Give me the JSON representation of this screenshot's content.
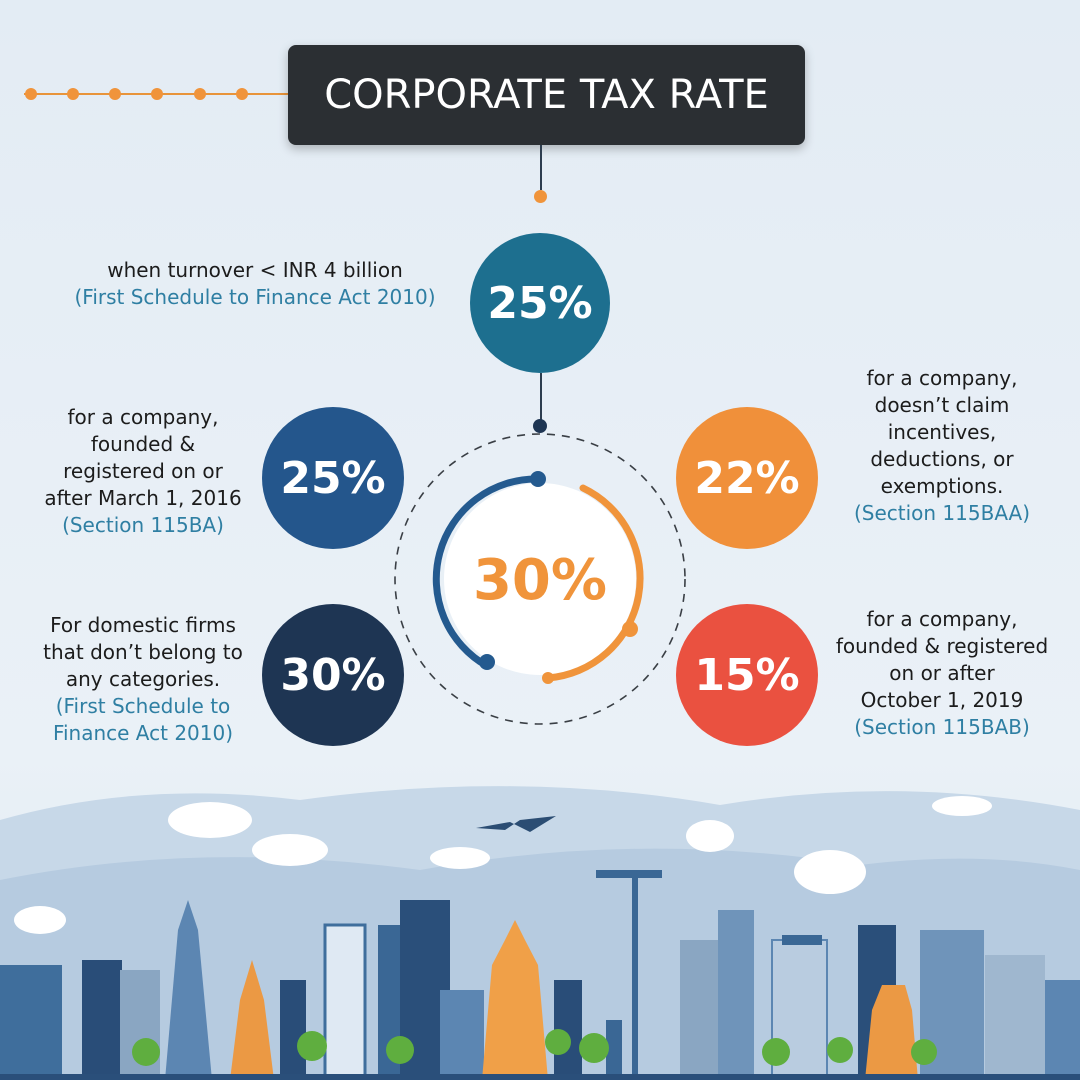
{
  "title": "CORPORATE TAX RATE",
  "center_rate": "30%",
  "top": {
    "rate": "25%",
    "lines": [
      "when turnover < INR 4 billion"
    ],
    "ref": [
      "(First Schedule to Finance Act 2010)"
    ],
    "color": "#1d6f8f"
  },
  "left_upper": {
    "rate": "25%",
    "lines": [
      "for a company,",
      "founded &",
      "registered on or",
      "after March 1, 2016"
    ],
    "ref": [
      "(Section 115BA)"
    ],
    "color": "#24568c"
  },
  "left_lower": {
    "rate": "30%",
    "lines": [
      "For domestic firms",
      "that don’t belong to",
      "any categories."
    ],
    "ref": [
      "(First Schedule to",
      "Finance Act 2010)"
    ],
    "color": "#1e3553"
  },
  "right_upper": {
    "rate": "22%",
    "lines": [
      "for a company,",
      "doesn’t claim",
      "incentives,",
      "deductions, or",
      "exemptions."
    ],
    "ref": [
      "(Section 115BAA)"
    ],
    "color": "#f0903a"
  },
  "right_lower": {
    "rate": "15%",
    "lines": [
      "for a company,",
      "founded & registered",
      "on or after",
      "October 1, 2019"
    ],
    "ref": [
      "(Section 115BAB)"
    ],
    "color": "#ea5140"
  }
}
